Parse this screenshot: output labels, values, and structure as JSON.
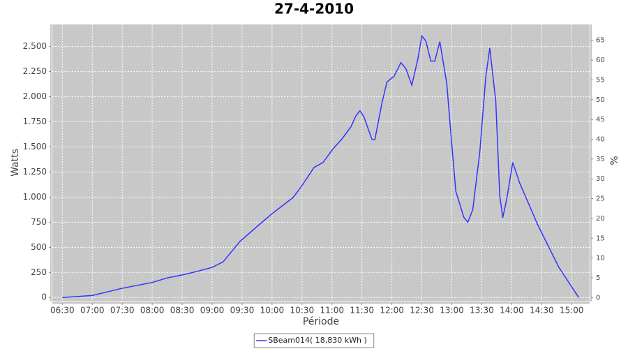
{
  "chart_data": {
    "type": "line",
    "title": "27-4-2010",
    "x_label": "Période",
    "y_label": "Watts",
    "y2_label": "%",
    "x": [
      390,
      420,
      449,
      480,
      495,
      510,
      525,
      540,
      551,
      568,
      587,
      600,
      621,
      629,
      642,
      651,
      661,
      670,
      679,
      684,
      688,
      692,
      700,
      703,
      710,
      715,
      719,
      722,
      729,
      734,
      740,
      746,
      750,
      754,
      759,
      763,
      768,
      775,
      780,
      784,
      792,
      796,
      801,
      808,
      814,
      818,
      824,
      828,
      831,
      835,
      841,
      848,
      866,
      887,
      907
    ],
    "series": [
      {
        "name": "SBeam014( 18,830 kWh )",
        "color": "#3333ff",
        "values": [
          0,
          20,
          90,
          150,
          195,
          225,
          260,
          300,
          355,
          560,
          725,
          835,
          995,
          1100,
          1295,
          1345,
          1480,
          1580,
          1700,
          1810,
          1860,
          1800,
          1575,
          1575,
          1935,
          2145,
          2180,
          2200,
          2340,
          2280,
          2115,
          2375,
          2605,
          2555,
          2355,
          2355,
          2550,
          2130,
          1520,
          1060,
          800,
          750,
          875,
          1450,
          2200,
          2485,
          1955,
          1015,
          795,
          980,
          1345,
          1140,
          725,
          305,
          0
        ]
      }
    ],
    "xlim": [
      380,
      918
    ],
    "xticks": [
      {
        "value": 390,
        "label": "06:30"
      },
      {
        "value": 420,
        "label": "07:00"
      },
      {
        "value": 450,
        "label": "07:30"
      },
      {
        "value": 480,
        "label": "08:00"
      },
      {
        "value": 510,
        "label": "08:30"
      },
      {
        "value": 540,
        "label": "09:00"
      },
      {
        "value": 570,
        "label": "09:30"
      },
      {
        "value": 600,
        "label": "10:00"
      },
      {
        "value": 630,
        "label": "10:30"
      },
      {
        "value": 660,
        "label": "11:00"
      },
      {
        "value": 690,
        "label": "11:30"
      },
      {
        "value": 720,
        "label": "12:00"
      },
      {
        "value": 750,
        "label": "12:30"
      },
      {
        "value": 780,
        "label": "13:00"
      },
      {
        "value": 810,
        "label": "13:30"
      },
      {
        "value": 840,
        "label": "14:00"
      },
      {
        "value": 870,
        "label": "14:30"
      },
      {
        "value": 900,
        "label": "15:00"
      }
    ],
    "ylim": [
      -40,
      2720
    ],
    "yticks": [
      0,
      250,
      500,
      750,
      {
        "value": 1000,
        "label": "1.000"
      },
      {
        "value": 1250,
        "label": "1.250"
      },
      {
        "value": 1500,
        "label": "1.500"
      },
      {
        "value": 1750,
        "label": "1.750"
      },
      {
        "value": 2000,
        "label": "2.000"
      },
      {
        "value": 2250,
        "label": "2.250"
      },
      {
        "value": 2500,
        "label": "2.500"
      }
    ],
    "y2lim": [
      -1,
      69
    ],
    "y2ticks": [
      0,
      5,
      10,
      15,
      20,
      25,
      30,
      35,
      40,
      45,
      50,
      55,
      60,
      65
    ],
    "grid": true,
    "background": "#c8c8c8",
    "legend": "bottom"
  }
}
